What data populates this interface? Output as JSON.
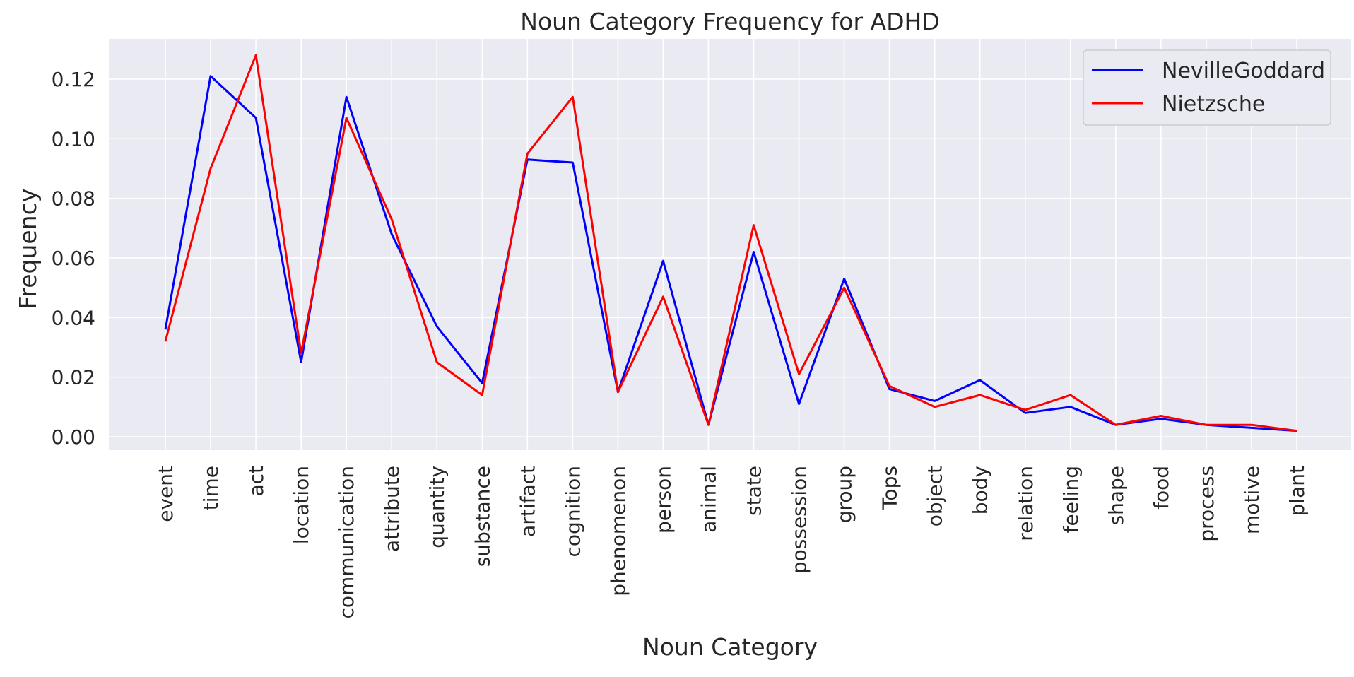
{
  "chart_data": {
    "type": "line",
    "title": "Noun Category Frequency for ADHD",
    "xlabel": "Noun Category",
    "ylabel": "Frequency",
    "categories": [
      "event",
      "time",
      "act",
      "location",
      "communication",
      "attribute",
      "quantity",
      "substance",
      "artifact",
      "cognition",
      "phenomenon",
      "person",
      "animal",
      "state",
      "possession",
      "group",
      "Tops",
      "object",
      "body",
      "relation",
      "feeling",
      "shape",
      "food",
      "process",
      "motive",
      "plant"
    ],
    "series": [
      {
        "name": "NevilleGoddard",
        "color": "#0000ff",
        "values": [
          0.036,
          0.121,
          0.107,
          0.025,
          0.114,
          0.068,
          0.037,
          0.018,
          0.093,
          0.092,
          0.015,
          0.059,
          0.004,
          0.062,
          0.011,
          0.053,
          0.016,
          0.012,
          0.019,
          0.008,
          0.01,
          0.004,
          0.006,
          0.004,
          0.003,
          0.002
        ]
      },
      {
        "name": "Nietzsche",
        "color": "#ff0000",
        "values": [
          0.032,
          0.09,
          0.128,
          0.028,
          0.107,
          0.073,
          0.025,
          0.014,
          0.095,
          0.114,
          0.015,
          0.047,
          0.004,
          0.071,
          0.021,
          0.05,
          0.017,
          0.01,
          0.014,
          0.009,
          0.014,
          0.004,
          0.007,
          0.004,
          0.004,
          0.002
        ]
      }
    ],
    "yticks": [
      "0.00",
      "0.02",
      "0.04",
      "0.06",
      "0.08",
      "0.10",
      "0.12"
    ],
    "ylim": [
      -0.0045,
      0.1335
    ],
    "grid": true,
    "legend_position": "top-right",
    "background_color": "#eaeaf2",
    "grid_color": "#ffffff"
  }
}
